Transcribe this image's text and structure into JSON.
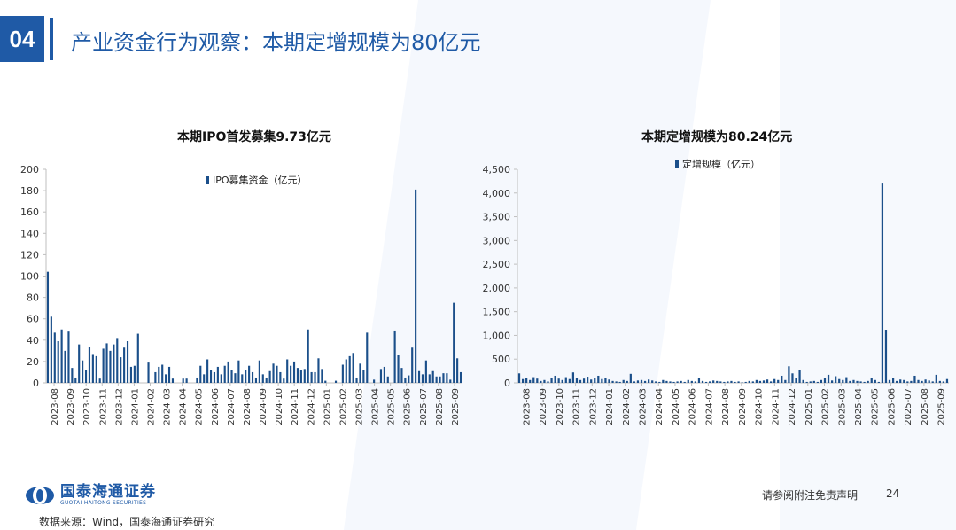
{
  "header": {
    "section_number": "04",
    "title": "产业资金行为观察：本期定增规模为80亿元"
  },
  "colors": {
    "accent": "#1f5aa6",
    "bar": "#1b4f8a",
    "axis": "#bfbfbf",
    "background_shape": "#eef4fb"
  },
  "footer": {
    "logo_cn": "国泰海通证券",
    "logo_en": "GUOTAI HAITONG SECURITIES",
    "source": "数据来源：Wind，国泰海通证券研究",
    "disclaimer": "请参阅附注免责声明",
    "page_number": "24"
  },
  "chart_data": [
    {
      "type": "bar",
      "title": "本期IPO首发募集9.73亿元",
      "legend": "IPO募集资金（亿元）",
      "legend_position": "top-center",
      "ylim": [
        0,
        200
      ],
      "yticks": [
        "0",
        "20",
        "40",
        "60",
        "80",
        "100",
        "120",
        "140",
        "160",
        "180",
        "200"
      ],
      "ytick_values": [
        0,
        20,
        40,
        60,
        80,
        100,
        120,
        140,
        160,
        180,
        200
      ],
      "xtick_labels": [
        "2023-08",
        "2023-09",
        "2023-10",
        "2023-11",
        "2023-12",
        "2024-01",
        "2024-02",
        "2024-03",
        "2024-04",
        "2024-05",
        "2024-06",
        "2024-07",
        "2024-08",
        "2024-09",
        "2024-10",
        "2024-11",
        "2024-12",
        "2025-01",
        "2025-02",
        "2025-03",
        "2025-04",
        "2025-05",
        "2025-06",
        "2025-07",
        "2025-08",
        "2025-09"
      ],
      "values": [
        104,
        62,
        47,
        39,
        50,
        30,
        48,
        14,
        5,
        36,
        21,
        12,
        34,
        27,
        25,
        4,
        32,
        37,
        30,
        36,
        42,
        24,
        33,
        39,
        15,
        16,
        46,
        0,
        0,
        19,
        0,
        10,
        15,
        17,
        8,
        15,
        4,
        0,
        0,
        4,
        4,
        0,
        0,
        5,
        16,
        8,
        22,
        12,
        10,
        15,
        8,
        16,
        20,
        12,
        9,
        21,
        8,
        12,
        16,
        10,
        5,
        21,
        8,
        5,
        11,
        18,
        16,
        10,
        4,
        22,
        16,
        20,
        14,
        12,
        13,
        50,
        10,
        10,
        23,
        13,
        2,
        0,
        0,
        2,
        0,
        17,
        22,
        25,
        28,
        5,
        18,
        12,
        47,
        0,
        3,
        0,
        13,
        15,
        6,
        0,
        49,
        26,
        14,
        5,
        7,
        33,
        181,
        11,
        8,
        21,
        8,
        11,
        6,
        6,
        9,
        9,
        3,
        75,
        23,
        10
      ]
    },
    {
      "type": "bar",
      "title": "本期定增规模为80.24亿元",
      "legend": "定增规模（亿元）",
      "legend_position": "top-center",
      "ylim": [
        0,
        4500
      ],
      "yticks": [
        "0",
        "500",
        "1,000",
        "1,500",
        "2,000",
        "2,500",
        "3,000",
        "3,500",
        "4,000",
        "4,500"
      ],
      "ytick_values": [
        0,
        500,
        1000,
        1500,
        2000,
        2500,
        3000,
        3500,
        4000,
        4500
      ],
      "xtick_labels": [
        "2023-08",
        "2023-09",
        "2023-10",
        "2023-11",
        "2023-12",
        "2024-01",
        "2024-02",
        "2024-03",
        "2024-04",
        "2024-05",
        "2024-06",
        "2024-07",
        "2024-08",
        "2024-09",
        "2024-10",
        "2024-11",
        "2024-12",
        "2025-01",
        "2025-02",
        "2025-03",
        "2025-04",
        "2025-05",
        "2025-06",
        "2025-07",
        "2025-08",
        "2025-09"
      ],
      "values": [
        200,
        80,
        110,
        60,
        120,
        90,
        40,
        60,
        30,
        100,
        150,
        90,
        60,
        120,
        80,
        220,
        100,
        60,
        90,
        130,
        70,
        100,
        150,
        80,
        110,
        70,
        40,
        30,
        20,
        60,
        40,
        190,
        30,
        50,
        60,
        40,
        70,
        50,
        30,
        20,
        60,
        40,
        30,
        20,
        30,
        40,
        20,
        60,
        40,
        30,
        110,
        40,
        20,
        30,
        50,
        40,
        30,
        20,
        30,
        40,
        20,
        30,
        10,
        20,
        40,
        30,
        60,
        40,
        50,
        70,
        30,
        80,
        60,
        150,
        60,
        350,
        200,
        100,
        280,
        60,
        20,
        30,
        40,
        20,
        60,
        100,
        170,
        50,
        140,
        80,
        60,
        120,
        40,
        60,
        40,
        30,
        20,
        40,
        100,
        60,
        20,
        4200,
        1120,
        60,
        100,
        40,
        70,
        60,
        30,
        40,
        150,
        60,
        40,
        70,
        50,
        30,
        170,
        40,
        30,
        80
      ]
    }
  ]
}
